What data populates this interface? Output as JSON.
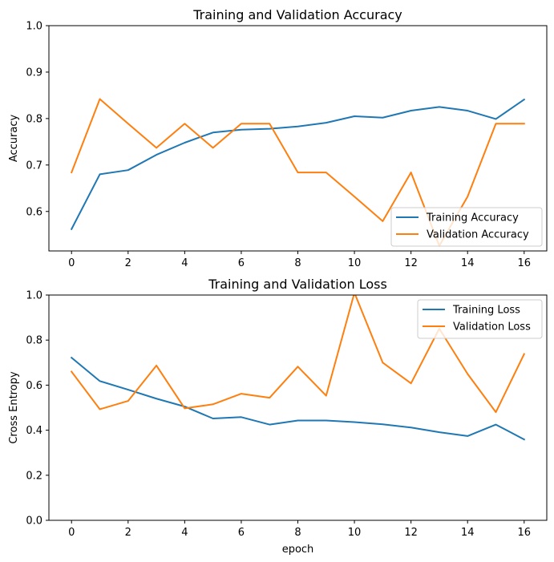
{
  "chart_data": [
    {
      "type": "line",
      "title": "Training and Validation Accuracy",
      "xlabel": "",
      "ylabel": "Accuracy",
      "xlim": [
        -0.8,
        16.8
      ],
      "ylim": [
        0.515,
        1.0
      ],
      "xticks": [
        0,
        2,
        4,
        6,
        8,
        10,
        12,
        14,
        16
      ],
      "yticks": [
        0.6,
        0.7,
        0.8,
        0.9,
        1.0
      ],
      "ytick_labels": [
        "0.6",
        "0.7",
        "0.8",
        "0.9",
        "1.0"
      ],
      "x": [
        0,
        1,
        2,
        3,
        4,
        5,
        6,
        7,
        8,
        9,
        10,
        11,
        12,
        13,
        14,
        15,
        16
      ],
      "legend": "lower right",
      "grid": false,
      "series": [
        {
          "name": "Training Accuracy",
          "color": "#1f77b4",
          "values": [
            0.562,
            0.68,
            0.689,
            0.722,
            0.748,
            0.77,
            0.776,
            0.778,
            0.783,
            0.791,
            0.805,
            0.802,
            0.817,
            0.825,
            0.817,
            0.799,
            0.841
          ]
        },
        {
          "name": "Validation Accuracy",
          "color": "#ff7f0e",
          "values": [
            0.684,
            0.842,
            0.789,
            0.737,
            0.789,
            0.737,
            0.789,
            0.789,
            0.684,
            0.684,
            0.632,
            0.579,
            0.684,
            0.526,
            0.632,
            0.789,
            0.789
          ]
        }
      ]
    },
    {
      "type": "line",
      "title": "Training and Validation Loss",
      "xlabel": "epoch",
      "ylabel": "Cross Entropy",
      "xlim": [
        -0.8,
        16.8
      ],
      "ylim": [
        0.0,
        1.0
      ],
      "xticks": [
        0,
        2,
        4,
        6,
        8,
        10,
        12,
        14,
        16
      ],
      "yticks": [
        0.0,
        0.2,
        0.4,
        0.6,
        0.8,
        1.0
      ],
      "ytick_labels": [
        "0.0",
        "0.2",
        "0.4",
        "0.6",
        "0.8",
        "1.0"
      ],
      "x": [
        0,
        1,
        2,
        3,
        4,
        5,
        6,
        7,
        8,
        9,
        10,
        11,
        12,
        13,
        14,
        15,
        16
      ],
      "legend": "upper right",
      "grid": false,
      "series": [
        {
          "name": "Training Loss",
          "color": "#1f77b4",
          "values": [
            0.722,
            0.618,
            0.58,
            0.54,
            0.505,
            0.452,
            0.458,
            0.425,
            0.443,
            0.443,
            0.436,
            0.426,
            0.412,
            0.391,
            0.374,
            0.425,
            0.359
          ]
        },
        {
          "name": "Validation Loss",
          "color": "#ff7f0e",
          "values": [
            0.66,
            0.493,
            0.53,
            0.687,
            0.497,
            0.515,
            0.562,
            0.544,
            0.682,
            0.553,
            1.01,
            0.7,
            0.608,
            0.851,
            0.65,
            0.48,
            0.738
          ]
        }
      ]
    }
  ]
}
